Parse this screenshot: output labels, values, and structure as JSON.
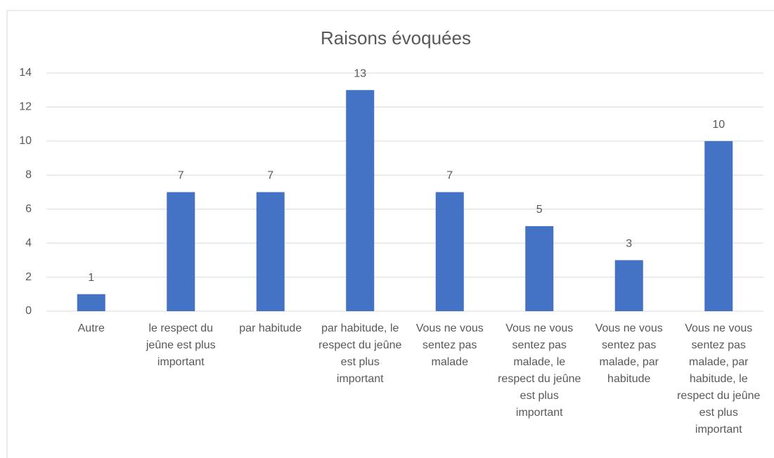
{
  "chart_data": {
    "type": "bar",
    "title": "Raisons évoquées",
    "categories": [
      "Autre",
      "le respect du jeûne est plus important",
      "par habitude",
      "par habitude, le respect du jeûne est plus important",
      "Vous ne vous sentez pas malade",
      "Vous ne vous sentez pas malade, le respect du jeûne est plus important",
      "Vous ne vous sentez pas malade, par habitude",
      "Vous ne vous sentez pas malade, par habitude, le respect du jeûne est plus important"
    ],
    "values": [
      1,
      7,
      7,
      13,
      7,
      5,
      3,
      10
    ],
    "color": "#4472c4",
    "ylim": [
      0,
      14
    ],
    "yticks": [
      0,
      2,
      4,
      6,
      8,
      10,
      12,
      14
    ],
    "grid": true
  }
}
